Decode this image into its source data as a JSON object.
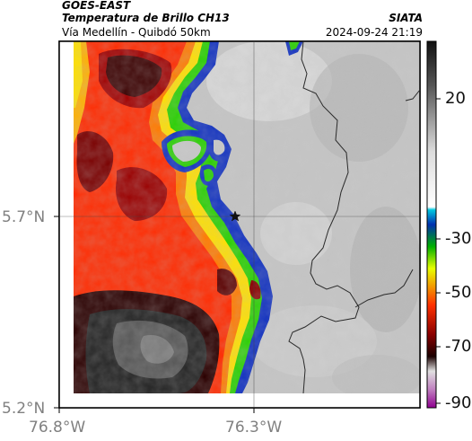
{
  "header": {
    "satellite": "GOES-EAST",
    "product": "Temperatura de Brillo CH13",
    "route": "Vía Medellín - Quibdó 50km",
    "agency": "SIATA",
    "timestamp": "2024-09-24 21:19"
  },
  "axes": {
    "lat_ticks": [
      "5.7°N",
      "5.2°N"
    ],
    "lon_ticks": [
      "76.8°W",
      "76.3°W"
    ]
  },
  "colorbar": {
    "ticks": [
      "20",
      "-30",
      "-50",
      "-70",
      "-90"
    ],
    "colors": [
      "#1a1a1a",
      "#ffffff",
      "#00b7d6",
      "#0036b0",
      "#00c000",
      "#e8ff00",
      "#ff2a00",
      "#230000",
      "#d8d8d8",
      "#a020a0"
    ]
  },
  "map": {
    "marker": "star-marker",
    "colors": {
      "clear": "#c6c6c6",
      "warm_cloud": "#ff2a00",
      "cold_core": "#262626",
      "edge_green": "#28d000",
      "edge_blue": "#1030c0",
      "border_line": "#2a2a2a"
    }
  }
}
